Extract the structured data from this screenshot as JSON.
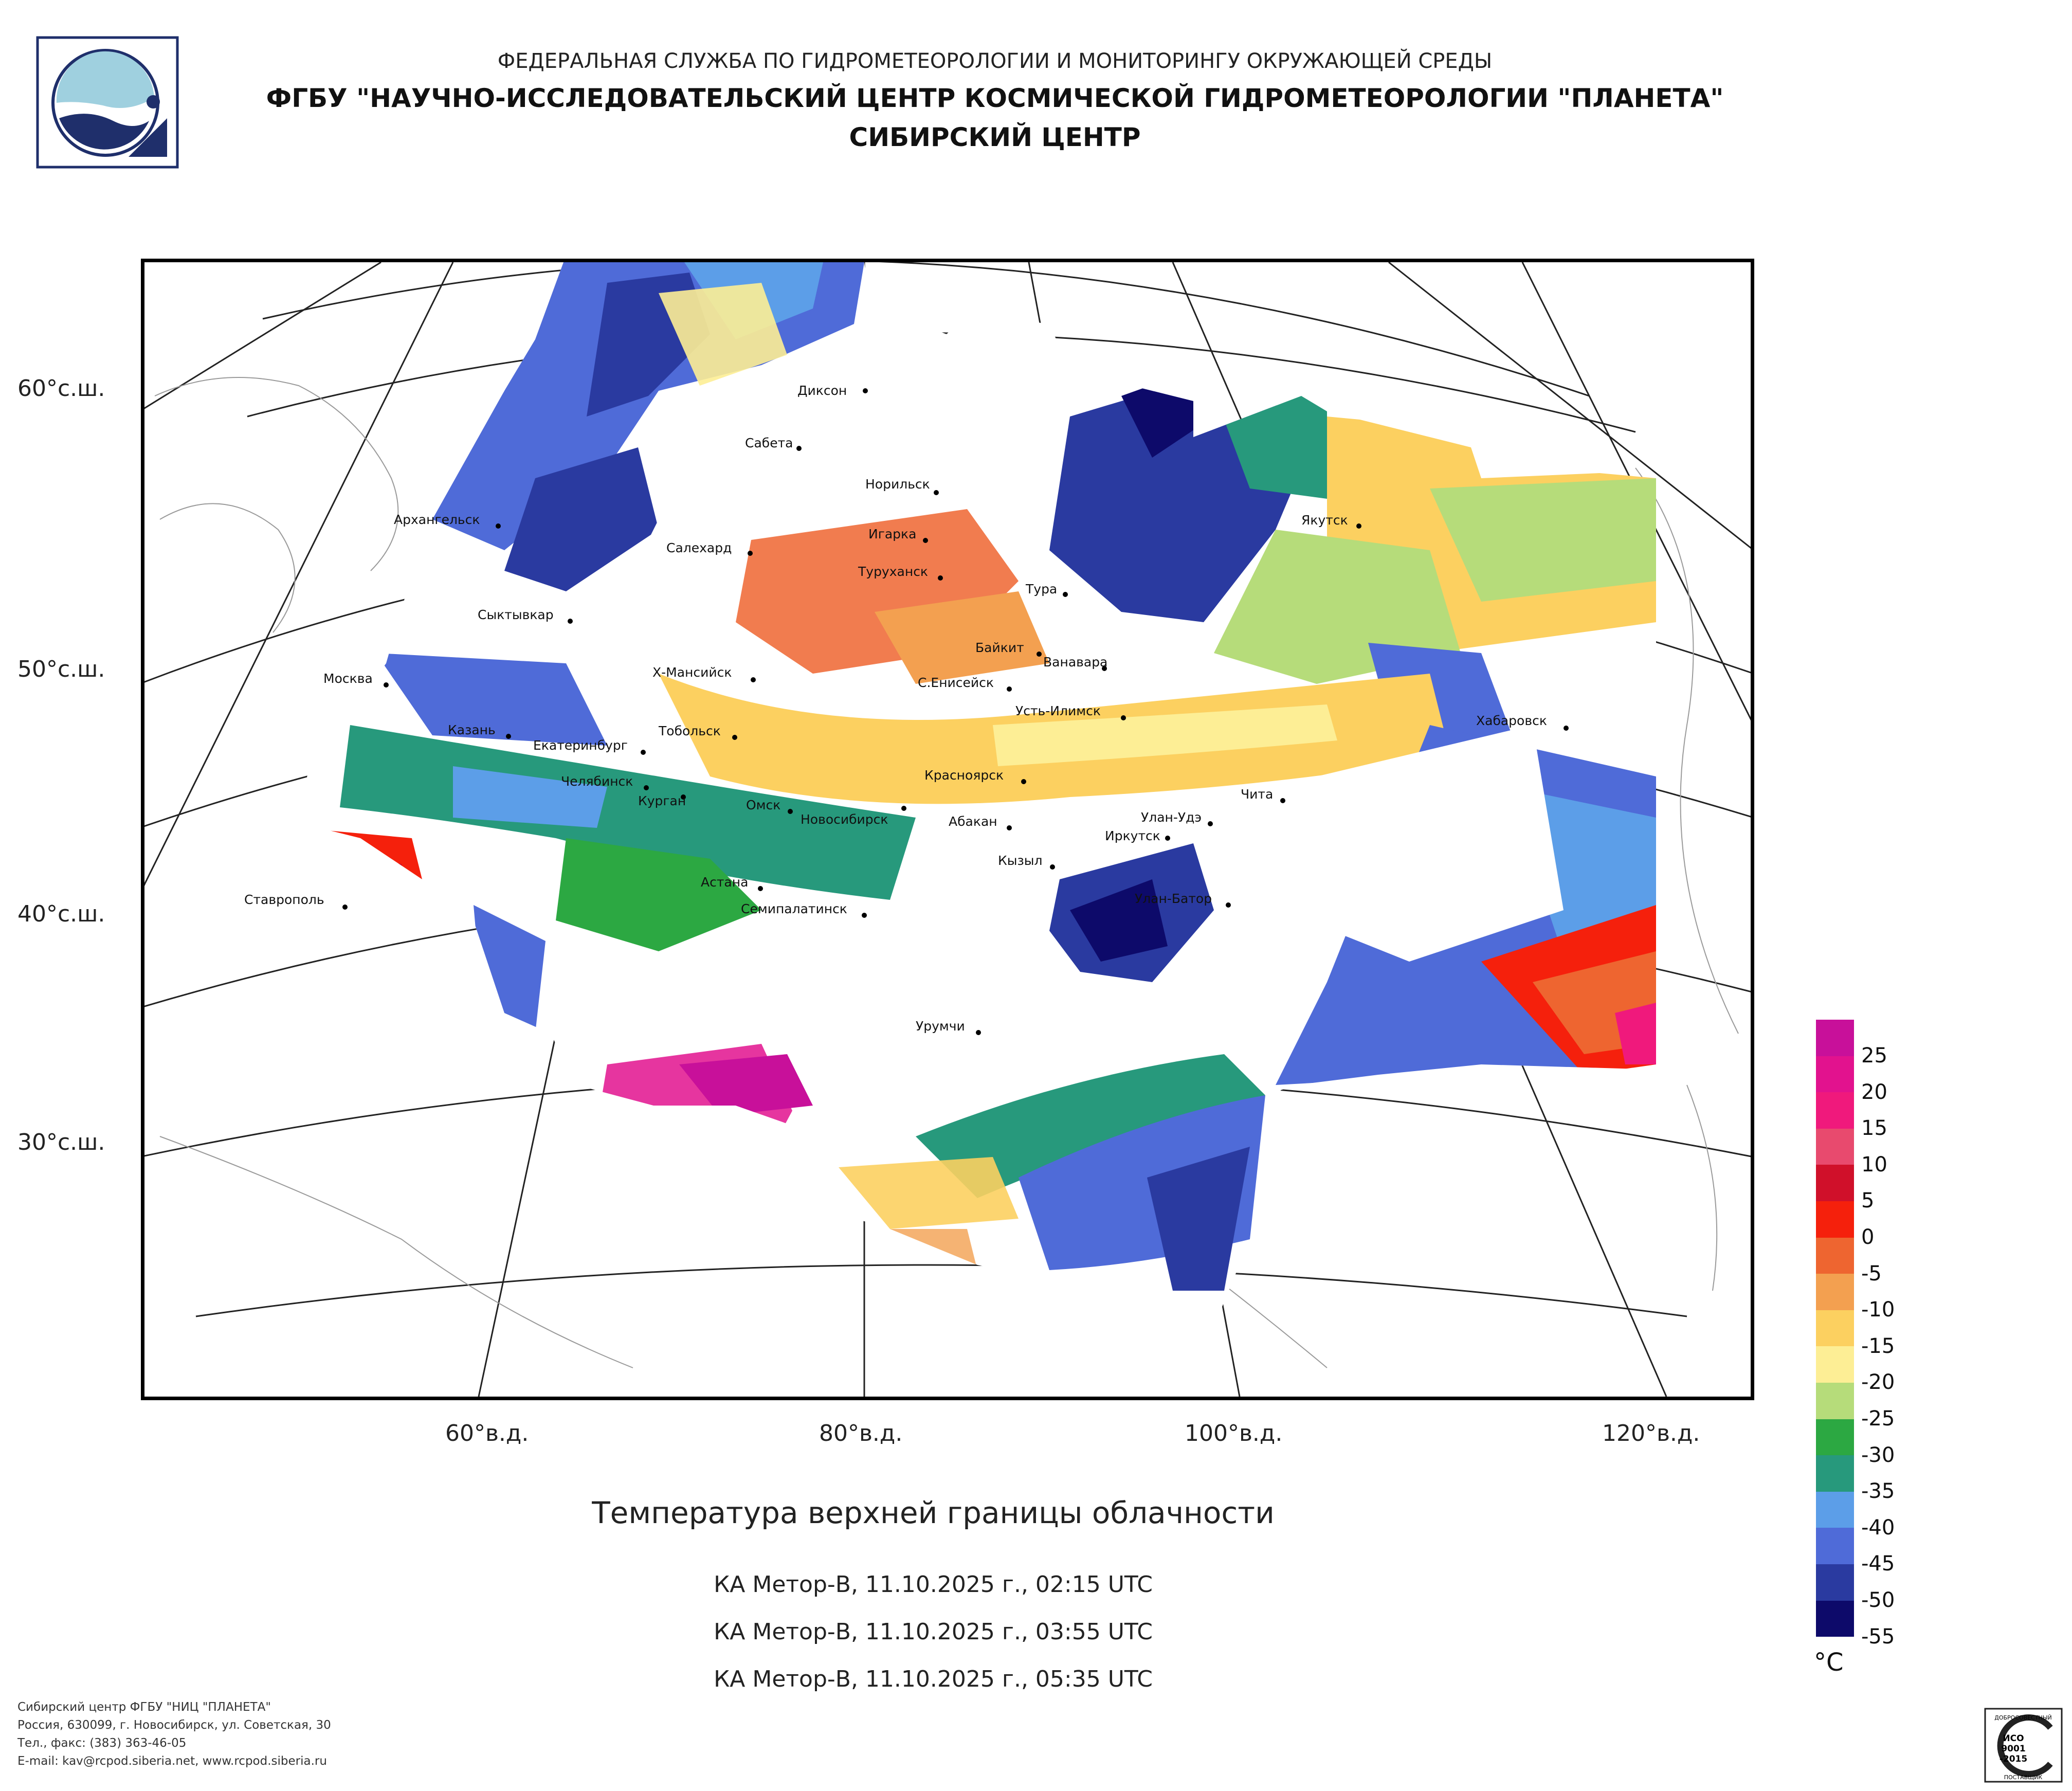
{
  "header": {
    "line1": "ФЕДЕРАЛЬНАЯ СЛУЖБА ПО ГИДРОМЕТЕОРОЛОГИИ И МОНИТОРИНГУ ОКРУЖАЮЩЕЙ СРЕДЫ",
    "line2": "ФГБУ \"НАУЧНО-ИССЛЕДОВАТЕЛЬСКИЙ ЦЕНТР КОСМИЧЕСКОЙ ГИДРОМЕТЕОРОЛОГИИ \"ПЛАНЕТА\"",
    "line3": "СИБИРСКИЙ ЦЕНТР"
  },
  "map": {
    "lat_labels": [
      "60°с.ш.",
      "50°с.ш.",
      "40°с.ш.",
      "30°с.ш."
    ],
    "lon_labels": [
      "60°в.д.",
      "80°в.д.",
      "100°в.д.",
      "120°в.д."
    ],
    "cities": [
      {
        "name": "Диксон"
      },
      {
        "name": "Сабета"
      },
      {
        "name": "Норильск"
      },
      {
        "name": "Архангельск"
      },
      {
        "name": "Игарка"
      },
      {
        "name": "Салехард"
      },
      {
        "name": "Туруханск"
      },
      {
        "name": "Тура"
      },
      {
        "name": "Якутск"
      },
      {
        "name": "Сыктывкар"
      },
      {
        "name": "Байкит"
      },
      {
        "name": "Ванавара"
      },
      {
        "name": "Москва"
      },
      {
        "name": "Х-Мансийск"
      },
      {
        "name": "С.Енисейск"
      },
      {
        "name": "Усть-Илимск"
      },
      {
        "name": "Хабаровск"
      },
      {
        "name": "Казань"
      },
      {
        "name": "Тобольск"
      },
      {
        "name": "Екатеринбург"
      },
      {
        "name": "Челябинск"
      },
      {
        "name": "Красноярск"
      },
      {
        "name": "Чита"
      },
      {
        "name": "Курган"
      },
      {
        "name": "Омск"
      },
      {
        "name": "Новосибирск"
      },
      {
        "name": "Абакан"
      },
      {
        "name": "Улан-Удэ"
      },
      {
        "name": "Иркутск"
      },
      {
        "name": "Кызыл"
      },
      {
        "name": "Астана"
      },
      {
        "name": "Ставрополь"
      },
      {
        "name": "Семипалатинск"
      },
      {
        "name": "Улан-Батор"
      },
      {
        "name": "Урумчи"
      }
    ]
  },
  "title": "Температура верхней границы облачности",
  "passes": [
    "КА Метор-В, 11.10.2025 г., 02:15 UTC",
    "КА Метор-В, 11.10.2025 г., 03:55 UTC",
    "КА Метор-В, 11.10.2025 г., 05:35 UTC"
  ],
  "legend": {
    "unit": "°C",
    "ticks": [
      "25",
      "20",
      "15",
      "10",
      "5",
      "0",
      "-5",
      "-10",
      "-15",
      "-20",
      "-25",
      "-30",
      "-35",
      "-40",
      "-45",
      "-50",
      "-55"
    ],
    "colors": [
      "#c8109a",
      "#e2128e",
      "#f0197c",
      "#e84a6e",
      "#d0102a",
      "#f5200c",
      "#ee6530",
      "#f3a050",
      "#fcd060",
      "#fdee95",
      "#b6dc7a",
      "#2ca842",
      "#27997c",
      "#5c9ee8",
      "#4f6bd8",
      "#2a3aa0",
      "#0d0a6a"
    ]
  },
  "footer": [
    "Сибирский центр ФГБУ \"НИЦ \"ПЛАНЕТА\"",
    "Россия, 630099, г. Новосибирск, ул. Советская, 30",
    "Тел., факс: (383) 363-46-05",
    "E-mail: kav@rcpod.siberia.net, www.rcpod.siberia.ru"
  ],
  "cert": {
    "top": "ДОБРОСОВЕСТНЫЙ",
    "l1": "ИСО",
    "l2": "9001",
    "l3": "-2015",
    "bottom": "ПОСТАВЩИК"
  }
}
